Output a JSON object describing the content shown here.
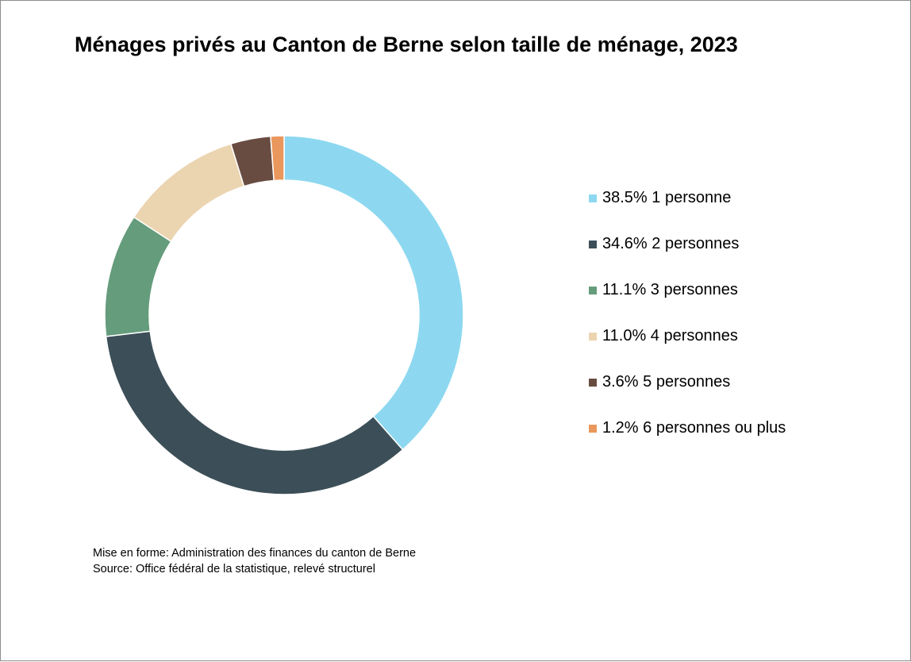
{
  "chart_data": {
    "type": "pie",
    "title": "Ménages privés au Canton de Berne selon taille de ménage, 2023",
    "categories": [
      "1 personne",
      "2 personnes",
      "3 personnes",
      "4 personnes",
      "5 personnes",
      "6 personnes ou plus"
    ],
    "values": [
      38.5,
      34.6,
      11.1,
      11.0,
      3.6,
      1.2
    ],
    "unit": "%",
    "colors": [
      "#8dd8f0",
      "#3c4f58",
      "#659c7c",
      "#ebd4b0",
      "#694c41",
      "#e9975c"
    ],
    "legend": {
      "position": "right",
      "labels": [
        "38.5% 1 personne",
        "34.6% 2 personnes",
        "11.1% 3 personnes",
        "11.0% 4 personnes",
        "3.6% 5 personnes",
        "1.2% 6 personnes ou plus"
      ]
    },
    "donut": true
  },
  "footer": {
    "credit": "Mise en forme: Administration des finances du canton de Berne",
    "source": "Source: Office fédéral de la statistique, relevé structurel"
  }
}
